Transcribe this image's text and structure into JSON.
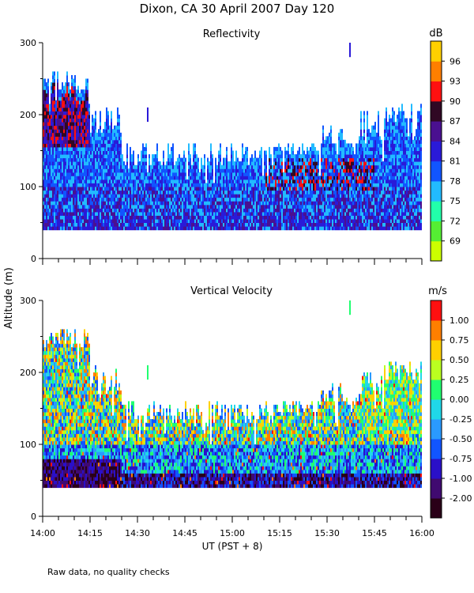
{
  "figure": {
    "title": "Dixon, CA 30 April 2007  Day 120",
    "ylabel": "Altitude (m)",
    "xlabel": "UT  (PST + 8)",
    "footnote": "Raw data, no quality checks"
  },
  "chart_data": [
    {
      "type": "heatmap",
      "title": "Reflectivity",
      "xlabel": "UT  (PST + 8)",
      "ylabel": "Altitude (m)",
      "x_range": [
        "14:00",
        "16:00"
      ],
      "xticks": [
        "14:00",
        "14:15",
        "14:30",
        "14:45",
        "15:00",
        "15:15",
        "15:30",
        "15:45",
        "16:00"
      ],
      "ylim": [
        0,
        300
      ],
      "yticks": [
        "0",
        "100",
        "200",
        "300"
      ],
      "colorbar": {
        "unit": "dB",
        "labels": [
          "69",
          "72",
          "75",
          "78",
          "81",
          "84",
          "87",
          "90",
          "93",
          "96"
        ],
        "colors": [
          "#ccff00",
          "#55ee33",
          "#22ffaa",
          "#22bbff",
          "#1155ff",
          "#2a1ad8",
          "#4a1090",
          "#300824",
          "#ff1010",
          "#ff7f00",
          "#ffd000"
        ]
      },
      "data_extent": {
        "min_altitude_m": 40,
        "typical_top_m": [
          120,
          160
        ],
        "max_top_m": 260,
        "max_top_times": [
          "14:05",
          "15:30"
        ]
      }
    },
    {
      "type": "heatmap",
      "title": "Vertical Velocity",
      "xlabel": "UT  (PST + 8)",
      "ylabel": "Altitude (m)",
      "x_range": [
        "14:00",
        "16:00"
      ],
      "xticks": [
        "14:00",
        "14:15",
        "14:30",
        "14:45",
        "15:00",
        "15:15",
        "15:30",
        "15:45",
        "16:00"
      ],
      "ylim": [
        0,
        300
      ],
      "yticks": [
        "0",
        "100",
        "200",
        "300"
      ],
      "colorbar": {
        "unit": "m/s",
        "labels": [
          "-2.00",
          "-1.00",
          "-0.75",
          "-0.50",
          "-0.25",
          "0.00",
          "0.25",
          "0.50",
          "0.75",
          "1.00"
        ],
        "colors": [
          "#2a0018",
          "#400a70",
          "#2a10c8",
          "#1155ff",
          "#2a9aff",
          "#20d8e8",
          "#20ff70",
          "#bbff20",
          "#ffd000",
          "#ff7f00",
          "#ff1010"
        ]
      },
      "data_extent": {
        "min_altitude_m": 40,
        "typical_top_m": [
          120,
          160
        ],
        "max_top_m": 260,
        "max_top_times": [
          "14:05",
          "15:25"
        ]
      }
    }
  ]
}
